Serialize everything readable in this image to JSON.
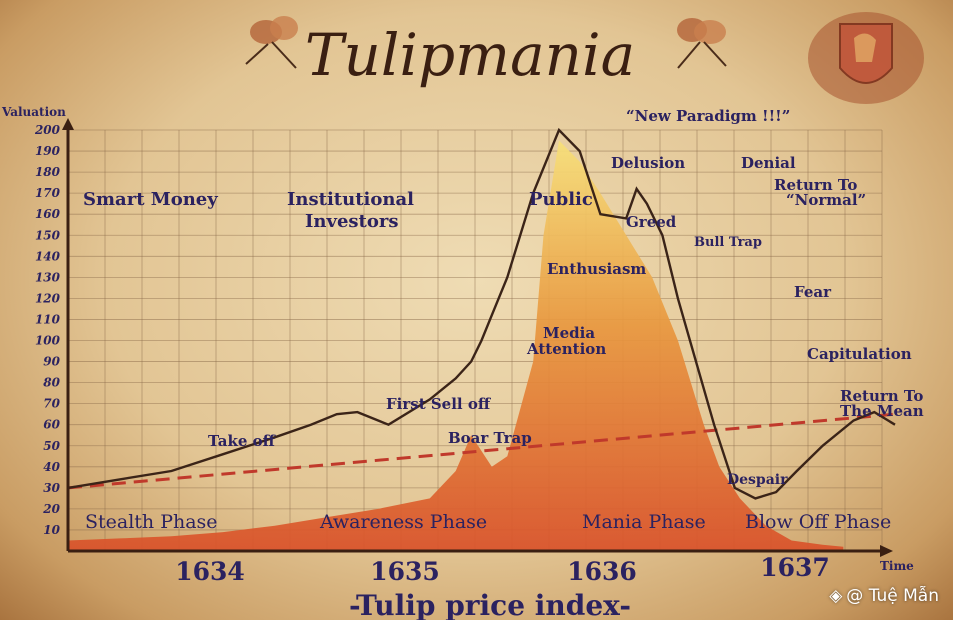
{
  "header": {
    "title": "Tulipmania"
  },
  "watermark": {
    "text": "@ Tuệ Mẫn"
  },
  "chart_data": {
    "type": "line",
    "title": "-Tulip price index-",
    "xlabel": "Time",
    "ylabel": "Valuation",
    "ylim": [
      0,
      200
    ],
    "y_ticks": [
      10,
      20,
      30,
      40,
      50,
      60,
      70,
      80,
      90,
      100,
      110,
      120,
      130,
      140,
      150,
      160,
      170,
      180,
      190,
      200
    ],
    "x_ticks": [
      "1634",
      "1635",
      "1636",
      "1637"
    ],
    "grid": true,
    "series": [
      {
        "kind": "line",
        "color": "#3b2418",
        "x": [
          0,
          10,
          20,
          30,
          40,
          47,
          52,
          56,
          62,
          70,
          75,
          78,
          80,
          82,
          85,
          90,
          95,
          99,
          103,
          108,
          110,
          112,
          115,
          118,
          125,
          129,
          133,
          137,
          141,
          146,
          152,
          156,
          160
        ],
        "y": [
          30,
          34,
          38,
          46,
          54,
          60,
          65,
          66,
          60,
          72,
          82,
          90,
          100,
          112,
          130,
          170,
          200,
          190,
          160,
          158,
          172,
          165,
          150,
          120,
          60,
          30,
          25,
          28,
          38,
          50,
          62,
          66,
          60
        ]
      },
      {
        "kind": "area",
        "color": "#d9512a",
        "x": [
          0,
          10,
          20,
          30,
          40,
          50,
          60,
          70,
          75,
          78,
          82,
          85,
          90,
          92,
          95,
          99,
          103,
          108,
          113,
          118,
          123,
          126,
          130,
          135,
          140,
          146,
          150
        ],
        "y": [
          5,
          6,
          7,
          9,
          12,
          16,
          20,
          25,
          38,
          55,
          40,
          45,
          90,
          150,
          195,
          185,
          170,
          150,
          130,
          100,
          60,
          40,
          25,
          12,
          5,
          3,
          2
        ]
      },
      {
        "kind": "trend",
        "color": "#c0392b",
        "x": [
          0,
          160
        ],
        "y": [
          30,
          65
        ]
      }
    ],
    "annotations": [
      "Smart Money",
      "Institutional",
      "Investors",
      "Public",
      "“New Paradigm !!!”",
      "Delusion",
      "Denial",
      "Return To",
      "“Normal”",
      "Greed",
      "Bull Trap",
      "Enthusiasm",
      "Fear",
      "Media",
      "Attention",
      "Capitulation",
      "Return To",
      "The Mean",
      "First Sell off",
      "Boar Trap",
      "Take off",
      "Despair"
    ],
    "phases": [
      "Stealth Phase",
      "Awareness Phase",
      "Mania Phase",
      "Blow Off Phase"
    ]
  }
}
